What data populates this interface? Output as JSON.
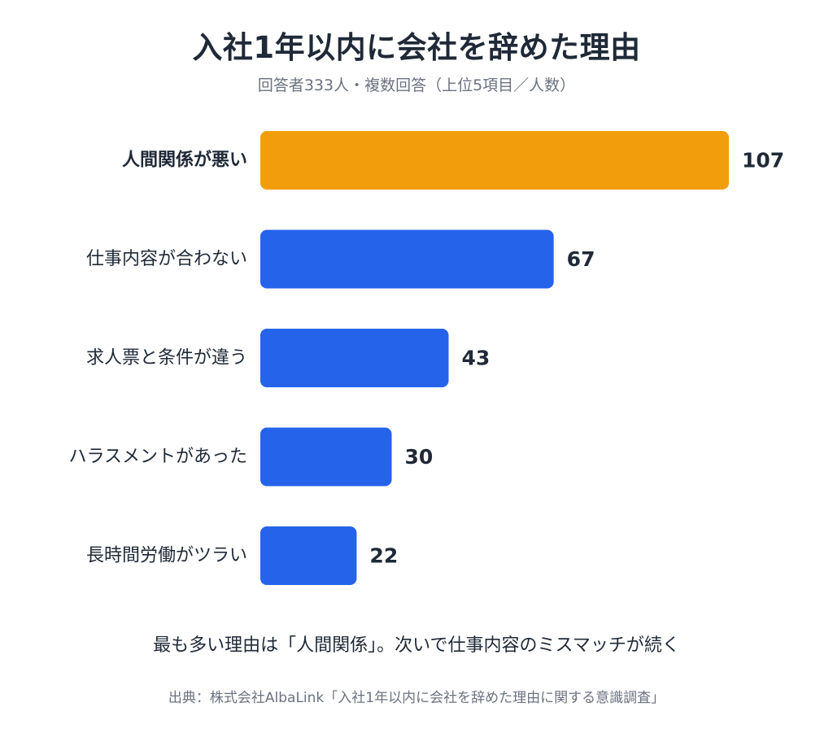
{
  "chart_data": {
    "type": "bar",
    "orientation": "horizontal",
    "title": "入社1年以内に会社を辞めた理由",
    "subtitle": "回答者333人・複数回答（上位5項目／人数）",
    "categories": [
      "人間関係が悪い",
      "仕事内容が合わない",
      "求人票と条件が違う",
      "ハラスメントがあった",
      "長時間労働がツラい"
    ],
    "values": [
      107,
      67,
      43,
      30,
      22
    ],
    "xlim": [
      0,
      107
    ],
    "grid": false,
    "colors": {
      "highlight": "#f29e0c",
      "default": "#2563eb"
    },
    "highlight_index": 0
  },
  "caption": "最も多い理由は「人間関係」。次いで仕事内容のミスマッチが続く",
  "source": "出典：株式会社AlbaLink「入社1年以内に会社を辞めた理由に関する意識調査」"
}
